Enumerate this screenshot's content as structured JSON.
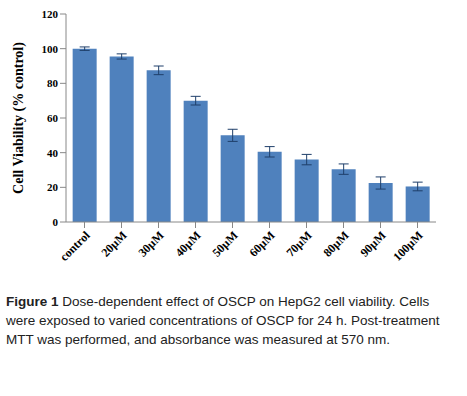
{
  "chart_data": {
    "type": "bar",
    "y_label": "Cell Viability (% control)",
    "caption_label": "Figure 1",
    "caption": "Dose-dependent effect of OSCP on HepG2 cell viability. Cells were exposed to varied concentrations of OSCP for 24 h. Post-treatment MTT was performed, and absorbance was measured at 570 nm.",
    "categories": [
      "control",
      "20µM",
      "30µM",
      "40µM",
      "50µM",
      "60µM",
      "70µM",
      "80µM",
      "90µM",
      "100µM"
    ],
    "values": [
      100,
      95.5,
      87.5,
      70,
      50,
      40.5,
      36,
      30.5,
      22.5,
      20.5
    ],
    "errors": [
      1,
      1.5,
      2.5,
      2.5,
      3.5,
      3,
      3,
      3,
      3.5,
      2.5
    ],
    "color": "#4f81bd",
    "ylim": [
      0,
      120
    ],
    "yticks": [
      0,
      20,
      40,
      60,
      80,
      100,
      120
    ],
    "grid": false
  }
}
